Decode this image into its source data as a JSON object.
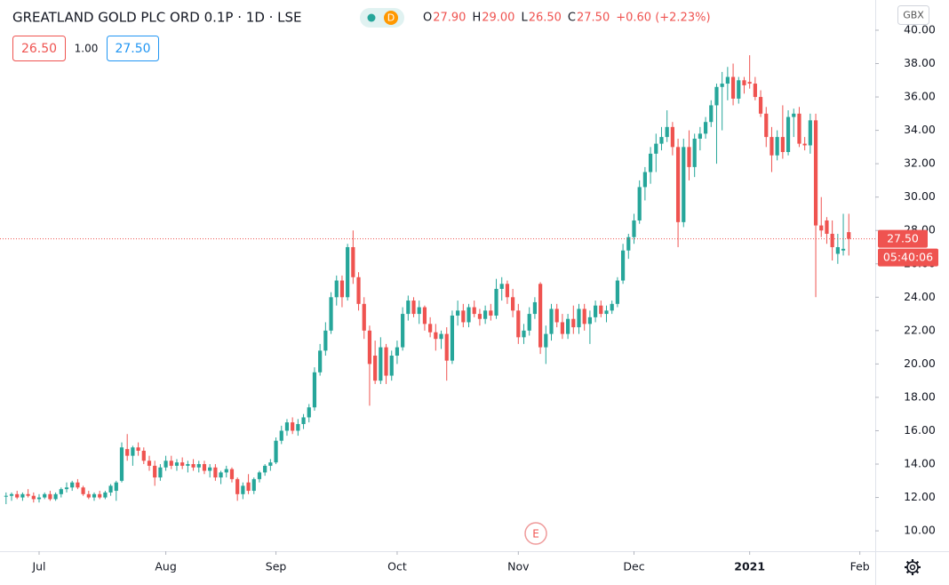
{
  "header": {
    "symbol": "GREATLAND GOLD PLC ORD 0.1P · 1D · LSE",
    "indicator": "D",
    "ohlc": [
      {
        "key": "O",
        "value": "27.90"
      },
      {
        "key": "H",
        "value": "29.00"
      },
      {
        "key": "L",
        "value": "26.50"
      },
      {
        "key": "C",
        "value": "27.50"
      }
    ],
    "change": "+0.60 (+2.23%)",
    "bid": "26.50",
    "spread": "1.00",
    "ask": "27.50",
    "currency": "GBX",
    "earnings": "E"
  },
  "chart_data": {
    "type": "candlestick",
    "up_color": "#26a69a",
    "down_color": "#ef5350",
    "candles": [
      [
        12.1,
        12.3,
        11.6,
        12.1
      ],
      [
        12.1,
        12.3,
        11.8,
        12.2
      ],
      [
        12.2,
        12.4,
        11.9,
        12.0
      ],
      [
        12.0,
        12.3,
        11.8,
        12.2
      ],
      [
        12.2,
        12.5,
        12.0,
        12.1
      ],
      [
        12.1,
        12.3,
        11.7,
        11.9
      ],
      [
        11.9,
        12.2,
        11.7,
        12.0
      ],
      [
        12.0,
        12.3,
        11.9,
        12.2
      ],
      [
        12.2,
        12.4,
        11.8,
        11.9
      ],
      [
        11.9,
        12.3,
        11.8,
        12.2
      ],
      [
        12.2,
        12.6,
        12.0,
        12.5
      ],
      [
        12.5,
        12.9,
        12.3,
        12.6
      ],
      [
        12.6,
        13.0,
        12.4,
        12.9
      ],
      [
        12.9,
        13.1,
        12.5,
        12.6
      ],
      [
        12.6,
        12.7,
        12.1,
        12.2
      ],
      [
        12.2,
        12.4,
        11.9,
        12.0
      ],
      [
        12.0,
        12.3,
        11.8,
        12.2
      ],
      [
        12.2,
        12.4,
        11.9,
        12.0
      ],
      [
        12.0,
        12.4,
        11.9,
        12.3
      ],
      [
        12.3,
        12.8,
        12.1,
        12.7
      ],
      [
        12.4,
        13.0,
        11.8,
        12.9
      ],
      [
        13.0,
        15.3,
        12.9,
        15.0
      ],
      [
        14.9,
        15.8,
        14.2,
        14.5
      ],
      [
        14.5,
        15.1,
        13.9,
        15.0
      ],
      [
        15.0,
        15.3,
        14.5,
        14.8
      ],
      [
        14.8,
        15.0,
        14.0,
        14.2
      ],
      [
        14.2,
        14.5,
        13.6,
        13.9
      ],
      [
        13.9,
        14.2,
        12.7,
        13.2
      ],
      [
        13.2,
        14.0,
        13.0,
        13.8
      ],
      [
        13.8,
        14.5,
        13.6,
        14.2
      ],
      [
        14.2,
        14.5,
        13.7,
        13.9
      ],
      [
        13.9,
        14.3,
        13.6,
        14.1
      ],
      [
        14.1,
        14.4,
        13.7,
        13.9
      ],
      [
        13.9,
        14.2,
        13.5,
        14.0
      ],
      [
        14.0,
        14.3,
        13.6,
        13.8
      ],
      [
        13.8,
        14.2,
        13.5,
        14.0
      ],
      [
        14.0,
        14.2,
        13.4,
        13.6
      ],
      [
        13.6,
        14.0,
        13.2,
        13.8
      ],
      [
        13.8,
        14.0,
        13.0,
        13.2
      ],
      [
        13.2,
        13.6,
        12.8,
        13.5
      ],
      [
        13.5,
        13.9,
        13.2,
        13.7
      ],
      [
        13.7,
        13.8,
        12.9,
        13.1
      ],
      [
        13.1,
        13.2,
        11.8,
        12.2
      ],
      [
        12.2,
        12.9,
        11.9,
        12.7
      ],
      [
        12.9,
        13.4,
        12.2,
        12.4
      ],
      [
        12.4,
        13.2,
        12.2,
        13.1
      ],
      [
        13.1,
        13.6,
        12.9,
        13.5
      ],
      [
        13.5,
        14.0,
        13.3,
        13.9
      ],
      [
        13.9,
        14.3,
        13.6,
        14.1
      ],
      [
        14.1,
        15.6,
        14.0,
        15.4
      ],
      [
        15.4,
        16.3,
        15.2,
        16.0
      ],
      [
        16.0,
        16.7,
        15.7,
        16.5
      ],
      [
        16.5,
        16.8,
        15.8,
        16.0
      ],
      [
        16.0,
        16.7,
        15.7,
        16.4
      ],
      [
        16.4,
        17.0,
        16.1,
        16.8
      ],
      [
        16.8,
        17.6,
        16.5,
        17.4
      ],
      [
        17.4,
        19.8,
        17.2,
        19.5
      ],
      [
        19.5,
        21.2,
        19.3,
        20.8
      ],
      [
        20.8,
        22.5,
        20.5,
        22.0
      ],
      [
        22.0,
        24.3,
        21.8,
        24.0
      ],
      [
        24.0,
        25.3,
        23.5,
        25.0
      ],
      [
        25.0,
        25.3,
        23.4,
        24.0
      ],
      [
        24.0,
        27.2,
        23.8,
        27.0
      ],
      [
        27.0,
        28.0,
        24.8,
        25.2
      ],
      [
        25.2,
        25.5,
        23.2,
        23.6
      ],
      [
        23.6,
        24.0,
        21.5,
        22.0
      ],
      [
        22.0,
        22.3,
        17.5,
        20.0
      ],
      [
        20.5,
        21.4,
        18.8,
        19.0
      ],
      [
        19.0,
        21.6,
        18.8,
        21.0
      ],
      [
        21.0,
        21.2,
        18.8,
        19.3
      ],
      [
        19.3,
        20.8,
        19.0,
        20.5
      ],
      [
        20.5,
        21.4,
        20.0,
        21.0
      ],
      [
        21.0,
        23.4,
        20.8,
        23.0
      ],
      [
        23.0,
        24.1,
        22.6,
        23.8
      ],
      [
        23.8,
        24.0,
        22.8,
        23.0
      ],
      [
        23.0,
        23.8,
        22.4,
        23.4
      ],
      [
        23.4,
        23.5,
        22.0,
        22.4
      ],
      [
        22.4,
        22.8,
        21.6,
        21.9
      ],
      [
        21.9,
        22.4,
        20.8,
        21.5
      ],
      [
        21.5,
        22.0,
        20.9,
        21.8
      ],
      [
        21.8,
        22.2,
        19.0,
        20.2
      ],
      [
        20.2,
        23.2,
        20.0,
        22.9
      ],
      [
        22.9,
        23.8,
        22.3,
        23.2
      ],
      [
        23.2,
        23.6,
        22.2,
        22.5
      ],
      [
        22.5,
        23.6,
        22.2,
        23.4
      ],
      [
        23.4,
        23.8,
        22.8,
        23.0
      ],
      [
        23.0,
        23.3,
        22.3,
        22.7
      ],
      [
        22.7,
        23.5,
        22.4,
        23.2
      ],
      [
        23.2,
        23.6,
        22.6,
        22.9
      ],
      [
        22.9,
        25.1,
        22.7,
        24.5
      ],
      [
        24.5,
        25.2,
        23.8,
        24.8
      ],
      [
        24.8,
        25.0,
        23.6,
        24.0
      ],
      [
        24.0,
        24.5,
        22.8,
        23.2
      ],
      [
        23.2,
        23.6,
        21.2,
        21.6
      ],
      [
        21.6,
        22.4,
        21.2,
        22.0
      ],
      [
        22.0,
        23.4,
        21.7,
        23.0
      ],
      [
        23.0,
        24.0,
        22.7,
        23.7
      ],
      [
        24.8,
        24.9,
        20.6,
        21.0
      ],
      [
        21.0,
        22.3,
        20.0,
        21.8
      ],
      [
        21.8,
        23.6,
        21.4,
        23.3
      ],
      [
        23.3,
        23.6,
        22.2,
        22.5
      ],
      [
        22.5,
        23.0,
        21.5,
        21.8
      ],
      [
        21.8,
        23.0,
        21.5,
        22.7
      ],
      [
        22.7,
        23.5,
        21.8,
        22.2
      ],
      [
        22.2,
        23.6,
        21.8,
        23.3
      ],
      [
        23.3,
        23.6,
        22.0,
        22.4
      ],
      [
        22.4,
        23.2,
        21.2,
        22.8
      ],
      [
        22.8,
        23.8,
        22.5,
        23.5
      ],
      [
        23.5,
        23.8,
        22.8,
        23.0
      ],
      [
        23.0,
        23.5,
        22.5,
        23.2
      ],
      [
        23.2,
        23.8,
        23.0,
        23.6
      ],
      [
        23.6,
        25.2,
        23.4,
        25.0
      ],
      [
        25.0,
        27.2,
        24.8,
        26.8
      ],
      [
        26.8,
        27.8,
        26.3,
        27.6
      ],
      [
        27.6,
        29.0,
        27.2,
        28.6
      ],
      [
        28.6,
        31.0,
        28.4,
        30.6
      ],
      [
        30.6,
        31.8,
        29.8,
        31.5
      ],
      [
        31.5,
        33.0,
        30.8,
        32.6
      ],
      [
        32.6,
        33.8,
        31.5,
        33.2
      ],
      [
        33.2,
        34.2,
        32.8,
        33.6
      ],
      [
        33.6,
        35.2,
        33.3,
        34.2
      ],
      [
        34.2,
        34.5,
        32.5,
        33.0
      ],
      [
        33.0,
        33.5,
        27.0,
        28.5
      ],
      [
        28.5,
        33.5,
        28.2,
        33.0
      ],
      [
        33.0,
        34.0,
        31.0,
        31.8
      ],
      [
        31.8,
        33.8,
        31.2,
        33.5
      ],
      [
        33.5,
        34.2,
        32.8,
        33.8
      ],
      [
        33.8,
        34.8,
        33.5,
        34.5
      ],
      [
        34.5,
        35.8,
        34.2,
        35.5
      ],
      [
        35.5,
        36.8,
        32.0,
        36.6
      ],
      [
        36.6,
        37.5,
        34.0,
        36.8
      ],
      [
        36.8,
        37.8,
        35.8,
        37.2
      ],
      [
        37.2,
        38.0,
        35.5,
        35.9
      ],
      [
        35.9,
        37.2,
        35.6,
        37.0
      ],
      [
        37.0,
        37.2,
        36.2,
        36.7
      ],
      [
        36.9,
        38.5,
        36.5,
        36.8
      ],
      [
        36.8,
        37.2,
        35.8,
        36.0
      ],
      [
        36.0,
        36.4,
        34.8,
        35.0
      ],
      [
        35.0,
        35.4,
        33.0,
        33.6
      ],
      [
        33.6,
        34.2,
        31.5,
        32.5
      ],
      [
        32.5,
        34.0,
        32.2,
        33.6
      ],
      [
        33.6,
        35.5,
        32.3,
        32.7
      ],
      [
        32.7,
        35.2,
        32.5,
        34.8
      ],
      [
        34.8,
        35.3,
        33.6,
        35.0
      ],
      [
        35.0,
        35.4,
        33.0,
        33.2
      ],
      [
        33.2,
        33.6,
        32.8,
        33.1
      ],
      [
        33.1,
        35.0,
        32.6,
        34.6
      ],
      [
        34.6,
        35.0,
        24.0,
        28.3
      ],
      [
        28.3,
        30.0,
        27.6,
        28.0
      ],
      [
        28.6,
        28.8,
        27.2,
        27.8
      ],
      [
        27.8,
        28.6,
        26.2,
        27.0
      ],
      [
        26.6,
        27.8,
        26.0,
        27.0
      ],
      [
        26.8,
        29.0,
        26.5,
        26.9
      ],
      [
        27.9,
        29.0,
        26.5,
        27.5
      ]
    ],
    "xlim": [
      -1.1,
      157.8
    ],
    "xticks": [
      {
        "value": 6,
        "label": "Jul"
      },
      {
        "value": 29,
        "label": "Aug"
      },
      {
        "value": 49,
        "label": "Sep"
      },
      {
        "value": 71,
        "label": "Oct"
      },
      {
        "value": 93,
        "label": "Nov"
      },
      {
        "value": 114,
        "label": "Dec"
      },
      {
        "value": 135,
        "label": "2021"
      },
      {
        "value": 155,
        "label": "Feb"
      }
    ],
    "ylim": [
      8.78,
      41.81
    ],
    "yticks": [
      {
        "value": 10,
        "label": "10.00"
      },
      {
        "value": 12,
        "label": "12.00"
      },
      {
        "value": 14,
        "label": "14.00"
      },
      {
        "value": 16,
        "label": "16.00"
      },
      {
        "value": 18,
        "label": "18.00"
      },
      {
        "value": 20,
        "label": "20.00"
      },
      {
        "value": 22,
        "label": "22.00"
      },
      {
        "value": 24,
        "label": "24.00"
      },
      {
        "value": 26,
        "label": "26.00"
      },
      {
        "value": 28,
        "label": "28.00"
      },
      {
        "value": 30,
        "label": "30.00"
      },
      {
        "value": 32,
        "label": "32.00"
      },
      {
        "value": 34,
        "label": "34.00"
      },
      {
        "value": 36,
        "label": "36.00"
      },
      {
        "value": 38,
        "label": "38.00"
      },
      {
        "value": 40,
        "label": "40.00"
      }
    ],
    "last_price": {
      "value": 27.5,
      "label": "27.50"
    },
    "countdown": "05:40:06",
    "grid": false
  }
}
